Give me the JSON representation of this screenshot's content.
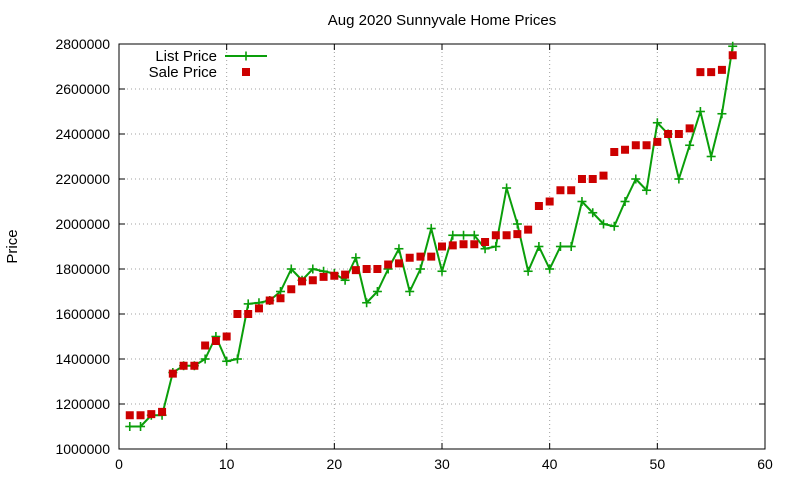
{
  "chart_data": {
    "type": "line",
    "title": "Aug 2020 Sunnyvale Home Prices",
    "xlabel": "",
    "ylabel": "Price",
    "xlim": [
      0,
      60
    ],
    "ylim": [
      1000000,
      2800000
    ],
    "x_ticks": [
      0,
      10,
      20,
      30,
      40,
      50,
      60
    ],
    "y_ticks": [
      1000000,
      1200000,
      1400000,
      1600000,
      1800000,
      2000000,
      2200000,
      2400000,
      2600000,
      2800000
    ],
    "x_tick_labels": [
      "0",
      "10",
      "20",
      "30",
      "40",
      "50",
      "60"
    ],
    "y_tick_labels": [
      "1000000",
      "1200000",
      "1400000",
      "1600000",
      "1800000",
      "2000000",
      "2200000",
      "2400000",
      "2600000",
      "2800000"
    ],
    "grid": true,
    "legend_position": "top-left",
    "series": [
      {
        "name": "List Price",
        "style": "line+cross",
        "color": "#0a9e0a",
        "x": [
          1,
          2,
          3,
          4,
          5,
          6,
          7,
          8,
          9,
          10,
          11,
          12,
          13,
          14,
          15,
          16,
          17,
          18,
          19,
          20,
          21,
          22,
          23,
          24,
          25,
          26,
          27,
          28,
          29,
          30,
          31,
          32,
          33,
          34,
          35,
          36,
          37,
          38,
          39,
          40,
          41,
          42,
          43,
          44,
          45,
          46,
          47,
          48,
          49,
          50,
          51,
          52,
          53,
          54,
          55,
          56,
          57
        ],
        "y": [
          1100000,
          1100000,
          1150000,
          1150000,
          1340000,
          1370000,
          1370000,
          1400000,
          1500000,
          1390000,
          1400000,
          1645000,
          1650000,
          1660000,
          1700000,
          1800000,
          1750000,
          1800000,
          1790000,
          1780000,
          1750000,
          1850000,
          1650000,
          1700000,
          1800000,
          1890000,
          1700000,
          1800000,
          1980000,
          1790000,
          1950000,
          1950000,
          1950000,
          1890000,
          1900000,
          2160000,
          2000000,
          1790000,
          1900000,
          1800000,
          1900000,
          1900000,
          2100000,
          2050000,
          2000000,
          1990000,
          2100000,
          2200000,
          2150000,
          2450000,
          2400000,
          2200000,
          2350000,
          2500000,
          2300000,
          2490000,
          2790000
        ]
      },
      {
        "name": "Sale Price",
        "style": "square",
        "color": "#cc0000",
        "x": [
          1,
          2,
          3,
          4,
          5,
          6,
          7,
          8,
          9,
          10,
          11,
          12,
          13,
          14,
          15,
          16,
          17,
          18,
          19,
          20,
          21,
          22,
          23,
          24,
          25,
          26,
          27,
          28,
          29,
          30,
          31,
          32,
          33,
          34,
          35,
          36,
          37,
          38,
          39,
          40,
          41,
          42,
          43,
          44,
          45,
          46,
          47,
          48,
          49,
          50,
          51,
          52,
          53,
          54,
          55,
          56,
          57
        ],
        "y": [
          1150000,
          1150000,
          1155000,
          1165000,
          1335000,
          1370000,
          1370000,
          1460000,
          1480000,
          1500000,
          1600000,
          1600000,
          1625000,
          1660000,
          1670000,
          1710000,
          1745000,
          1750000,
          1765000,
          1770000,
          1775000,
          1795000,
          1800000,
          1800000,
          1820000,
          1825000,
          1850000,
          1855000,
          1855000,
          1900000,
          1905000,
          1910000,
          1910000,
          1920000,
          1950000,
          1950000,
          1955000,
          1975000,
          2080000,
          2100000,
          2150000,
          2150000,
          2200000,
          2200000,
          2215000,
          2320000,
          2330000,
          2350000,
          2350000,
          2365000,
          2400000,
          2400000,
          2425000,
          2675000,
          2675000,
          2685000,
          2750000
        ]
      }
    ]
  }
}
